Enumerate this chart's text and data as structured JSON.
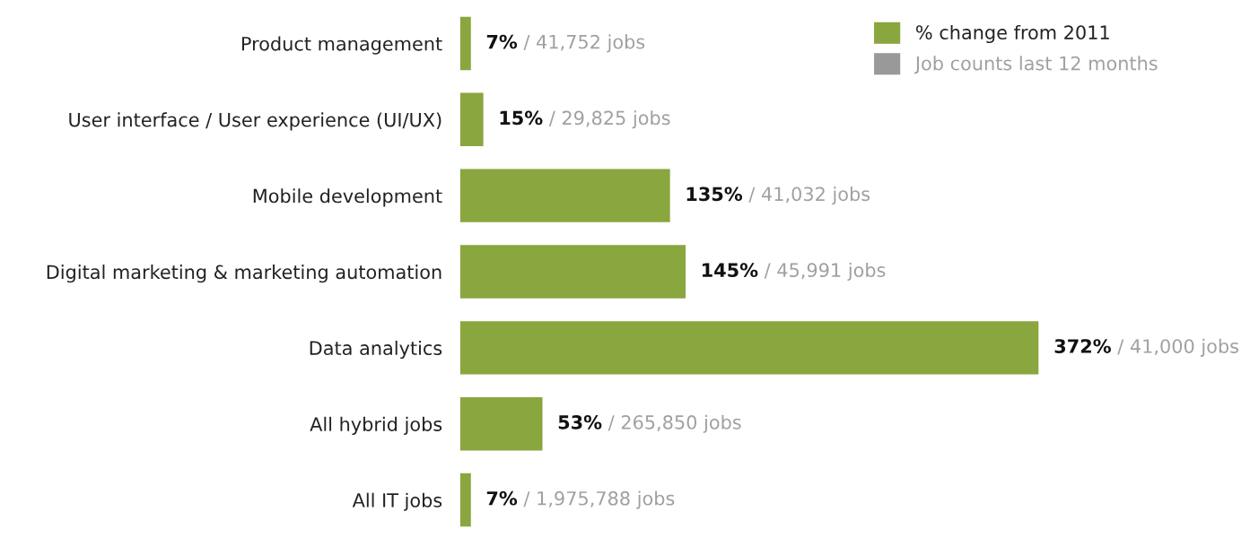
{
  "chart_data": {
    "type": "bar",
    "orientation": "horizontal",
    "legend": "top right",
    "grid": false,
    "categories": [
      "Product management",
      "User interface / User experience (UI/UX)",
      "Mobile development",
      "Digital marketing & marketing automation",
      "Data analytics",
      "All hybrid jobs",
      "All IT jobs"
    ],
    "series": [
      {
        "name": "% change from 2011",
        "color": "#8aa63e",
        "values": [
          7,
          15,
          135,
          145,
          372,
          53,
          7
        ],
        "value_labels": [
          "7%",
          "15%",
          "135%",
          "145%",
          "372%",
          "53%",
          "7%"
        ]
      },
      {
        "name": "Job counts last 12 months",
        "color": "#999999",
        "values": [
          null,
          null,
          null,
          null,
          null,
          null,
          null
        ],
        "value_labels": [
          "/ 41,752 jobs",
          "/ 29,825 jobs",
          "/ 41,032 jobs",
          "/ 45,991 jobs",
          "/ 41,000 jobs",
          "/ 265,850 jobs",
          "/ 1,975,788 jobs"
        ]
      }
    ]
  }
}
